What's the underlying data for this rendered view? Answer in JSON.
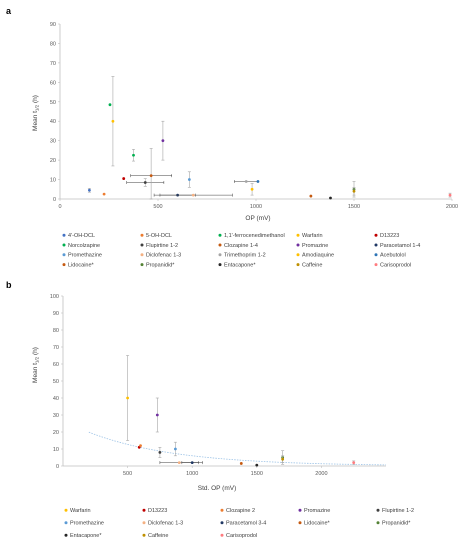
{
  "chart_data": [
    {
      "type": "scatter",
      "panel_label": "a",
      "xlabel": "OP (mV)",
      "ylabel": "Mean t1/2 (h)",
      "xlim": [
        0,
        2000
      ],
      "ylim": [
        0,
        90
      ],
      "xticks": [
        0,
        500,
        1000,
        1500,
        2000
      ],
      "yticks": [
        0,
        10,
        20,
        30,
        40,
        50,
        60,
        70,
        80,
        90
      ],
      "grid": false,
      "legend_position": "bottom",
      "series": [
        {
          "name": "4'-OH-DCL",
          "color": "#4472c4",
          "points": [
            {
              "x": 150,
              "y": 4.5,
              "yerr": 1.0
            }
          ]
        },
        {
          "name": "5-OH-DCL",
          "color": "#ed7d31",
          "points": [
            {
              "x": 225,
              "y": 2.5
            }
          ]
        },
        {
          "name": "1,1'-ferrocenedimethanol",
          "color": "#00b050",
          "points": [
            {
              "x": 255,
              "y": 48.5
            }
          ]
        },
        {
          "name": "Warfarin",
          "color": "#ffc000",
          "points": [
            {
              "x": 270,
              "y": 40,
              "yerr": 23
            }
          ]
        },
        {
          "name": "D13223",
          "color": "#c00000",
          "points": [
            {
              "x": 325,
              "y": 10.5
            }
          ]
        },
        {
          "name": "Norcolzapine",
          "color": "#00b050",
          "points": [
            {
              "x": 375,
              "y": 22.5,
              "yerr": 3
            }
          ]
        },
        {
          "name": "Flupirtine 1-2",
          "color": "#404040",
          "points": [
            {
              "x": 435,
              "y": 8.5,
              "xerr": 95,
              "yerr": 2
            }
          ]
        },
        {
          "name": "Clozapine 1-4",
          "color": "#c55a11",
          "points": [
            {
              "x": 465,
              "y": 12,
              "xerr": 105,
              "yerr": 14
            }
          ]
        },
        {
          "name": "Promazine",
          "color": "#7030a0",
          "points": [
            {
              "x": 525,
              "y": 30,
              "yerr": 10
            }
          ]
        },
        {
          "name": "Paracetamol 1-4",
          "color": "#203864",
          "points": [
            {
              "x": 600,
              "y": 2,
              "xerr": 90
            }
          ]
        },
        {
          "name": "Promethazine",
          "color": "#5b9bd5",
          "points": [
            {
              "x": 660,
              "y": 10,
              "yerr": 4
            }
          ]
        },
        {
          "name": "Diclofenac 1-3",
          "color": "#f4b183",
          "points": [
            {
              "x": 680,
              "y": 2,
              "xerr": 200
            }
          ]
        },
        {
          "name": "Trimethoprim 1-2",
          "color": "#a5a5a5",
          "points": [
            {
              "x": 950,
              "y": 9,
              "xerr": 60
            }
          ]
        },
        {
          "name": "Amodiaquine",
          "color": "#ffc000",
          "points": [
            {
              "x": 980,
              "y": 5,
              "yerr": 3
            }
          ]
        },
        {
          "name": "Acebutolol",
          "color": "#2e75b6",
          "points": [
            {
              "x": 1010,
              "y": 9
            }
          ]
        },
        {
          "name": "Lidocaine*",
          "color": "#c55a11",
          "points": [
            {
              "x": 1280,
              "y": 1.5
            }
          ]
        },
        {
          "name": "Propanidid*",
          "color": "#548235",
          "points": [
            {
              "x": 1500,
              "y": 5,
              "yerr": 4
            }
          ]
        },
        {
          "name": "Entacapone*",
          "color": "#262626",
          "points": [
            {
              "x": 1380,
              "y": 0.5
            }
          ]
        },
        {
          "name": "Caffeine",
          "color": "#bf9000",
          "points": [
            {
              "x": 1500,
              "y": 4,
              "yerr": 2
            }
          ]
        },
        {
          "name": "Carisoprodol",
          "color": "#ff7c80",
          "points": [
            {
              "x": 1990,
              "y": 2,
              "yerr": 1
            }
          ]
        }
      ]
    },
    {
      "type": "scatter",
      "panel_label": "b",
      "xlabel": "Std. OP (mV)",
      "ylabel": "Mean t1/2 (h)",
      "xlim": [
        0,
        2500
      ],
      "ylim": [
        0,
        100
      ],
      "xticks": [
        500,
        1000,
        1500,
        2000
      ],
      "yticks": [
        0,
        10,
        20,
        30,
        40,
        50,
        60,
        70,
        80,
        90,
        100
      ],
      "grid": false,
      "trendline": "exponential",
      "trendline_color": "#9dc3e6",
      "legend_position": "bottom",
      "series": [
        {
          "name": "Warfarin",
          "color": "#ffc000",
          "points": [
            {
              "x": 500,
              "y": 40,
              "yerr": 25
            }
          ]
        },
        {
          "name": "D13223",
          "color": "#c00000",
          "points": [
            {
              "x": 590,
              "y": 11
            }
          ]
        },
        {
          "name": "Clozapine 2",
          "color": "#ed7d31",
          "points": [
            {
              "x": 600,
              "y": 12
            }
          ]
        },
        {
          "name": "Promazine",
          "color": "#7030a0",
          "points": [
            {
              "x": 730,
              "y": 30,
              "yerr": 10
            }
          ]
        },
        {
          "name": "Flupirtine 1-2",
          "color": "#404040",
          "points": [
            {
              "x": 750,
              "y": 8,
              "yerr": 3
            }
          ]
        },
        {
          "name": "Promethazine",
          "color": "#5b9bd5",
          "points": [
            {
              "x": 870,
              "y": 10,
              "yerr": 4
            }
          ]
        },
        {
          "name": "Diclofenac 1-3",
          "color": "#f4b183",
          "points": [
            {
              "x": 900,
              "y": 2,
              "xerr": 150
            }
          ]
        },
        {
          "name": "Paracetamol 3-4",
          "color": "#203864",
          "points": [
            {
              "x": 1000,
              "y": 2,
              "xerr": 80
            }
          ]
        },
        {
          "name": "Lidocaine*",
          "color": "#c55a11",
          "points": [
            {
              "x": 1380,
              "y": 1.5
            }
          ]
        },
        {
          "name": "Propanidid*",
          "color": "#548235",
          "points": [
            {
              "x": 1700,
              "y": 5,
              "yerr": 4
            }
          ]
        },
        {
          "name": "Entacapone*",
          "color": "#262626",
          "points": [
            {
              "x": 1500,
              "y": 0.5
            }
          ]
        },
        {
          "name": "Caffeine",
          "color": "#bf9000",
          "points": [
            {
              "x": 1700,
              "y": 4,
              "yerr": 2
            }
          ]
        },
        {
          "name": "Carisoprodol",
          "color": "#ff7c80",
          "points": [
            {
              "x": 2250,
              "y": 2,
              "yerr": 1
            }
          ]
        }
      ]
    }
  ]
}
